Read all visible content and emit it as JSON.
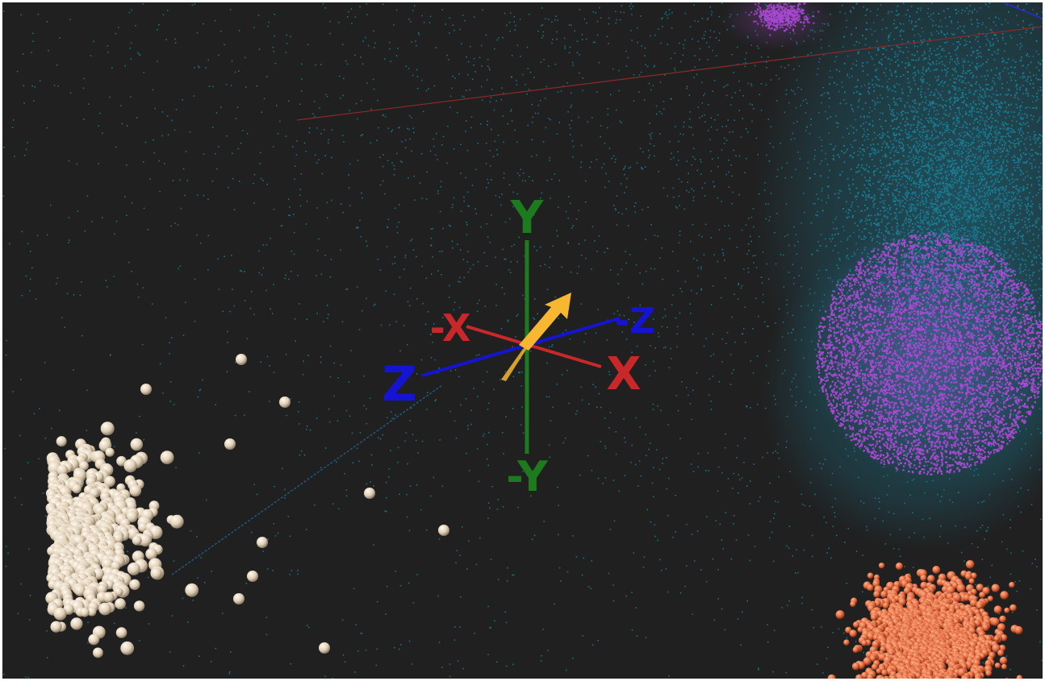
{
  "viewport": {
    "background": "#202020",
    "frame_color": "#ffffff"
  },
  "gizmo": {
    "labels": {
      "pos_y": "Y",
      "neg_y": "-Y",
      "pos_x": "X",
      "neg_x": "-X",
      "pos_z": "Z",
      "neg_z": "-Z"
    },
    "colors": {
      "x": "#c8282a",
      "y": "#1e7a1e",
      "z": "#1414d2",
      "arrow": "#f7b731"
    },
    "arrow_icon": "yellow-direction-arrow"
  },
  "point_clouds": {
    "background_dust": {
      "color": "#1c7e93"
    },
    "teal_cloud": {
      "color": "#1b7a90"
    },
    "violet_cluster": {
      "color": "#a84ad2"
    },
    "orange_cluster": {
      "color": "#e06a40"
    },
    "beige_cluster": {
      "color": "#e6d6c0"
    }
  },
  "bounding_box": {
    "red_edge_color": "#8a2a2a",
    "blue_edge_color": "#1c5a80",
    "corner_color": "#2a2ad0"
  }
}
